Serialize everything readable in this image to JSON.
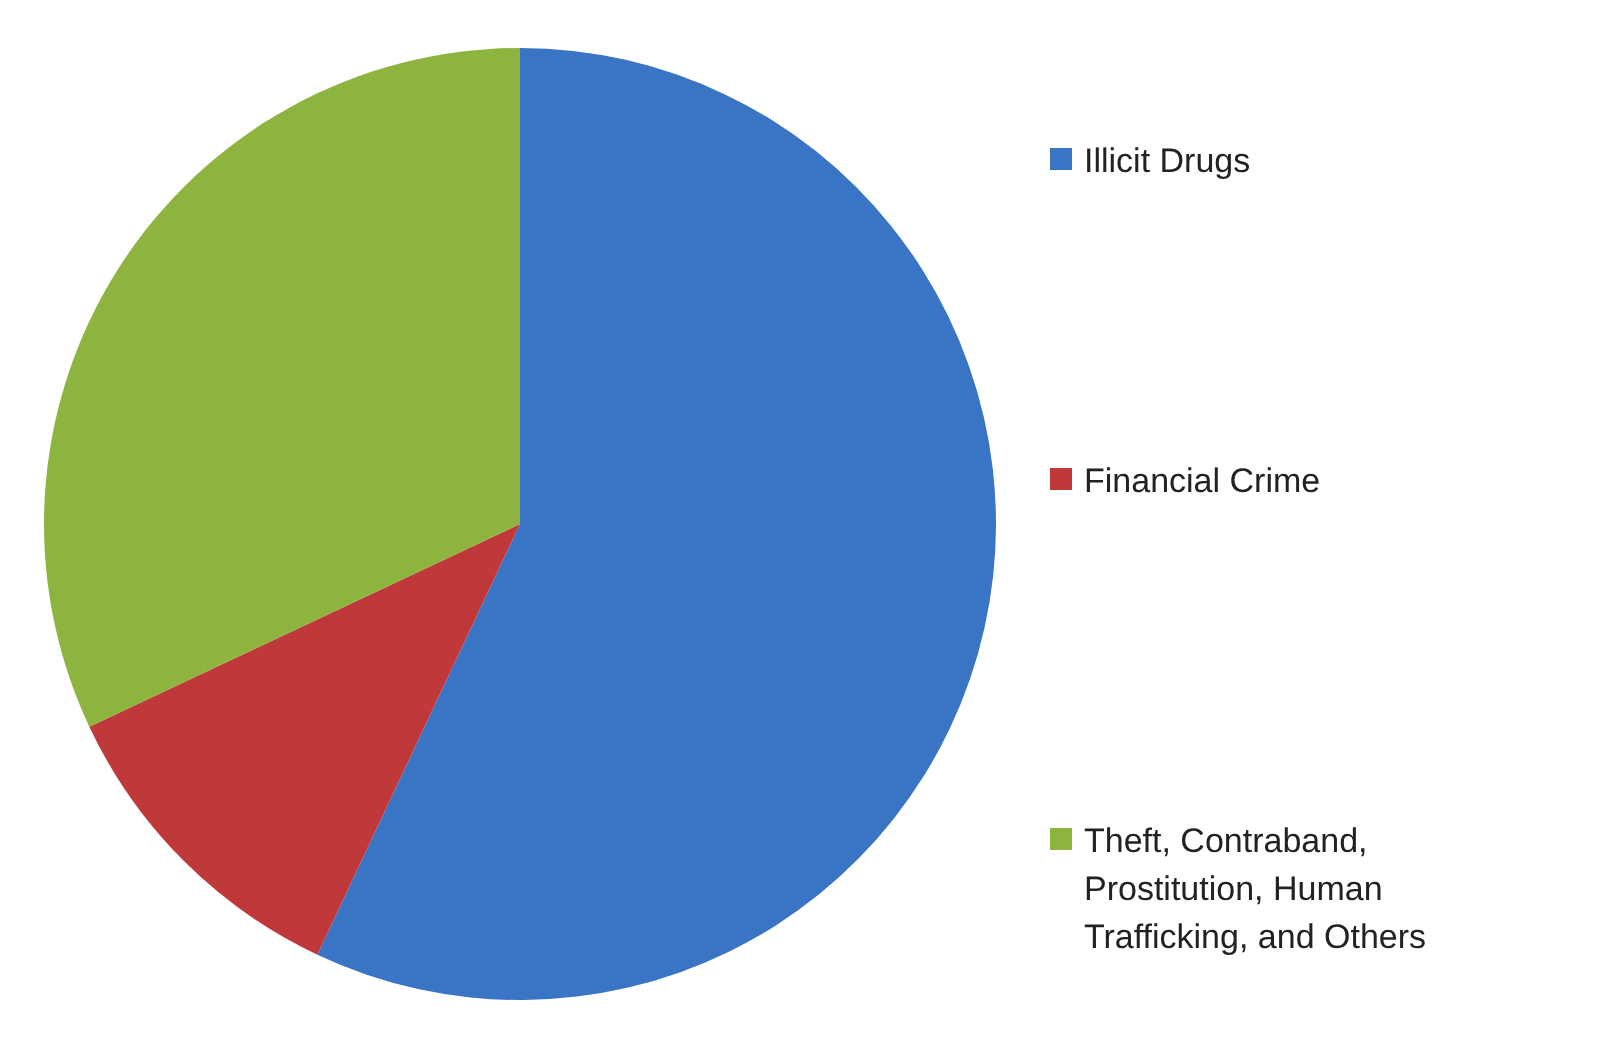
{
  "chart_data": {
    "type": "pie",
    "categories": [
      "Illicit Drugs",
      "Financial Crime",
      "Theft, Contraband, Prostitution, Human Trafficking, and Others"
    ],
    "values": [
      57,
      11,
      32
    ],
    "colors": [
      "#3a74c4",
      "#c0393a",
      "#8db43e"
    ],
    "legend": "right"
  }
}
